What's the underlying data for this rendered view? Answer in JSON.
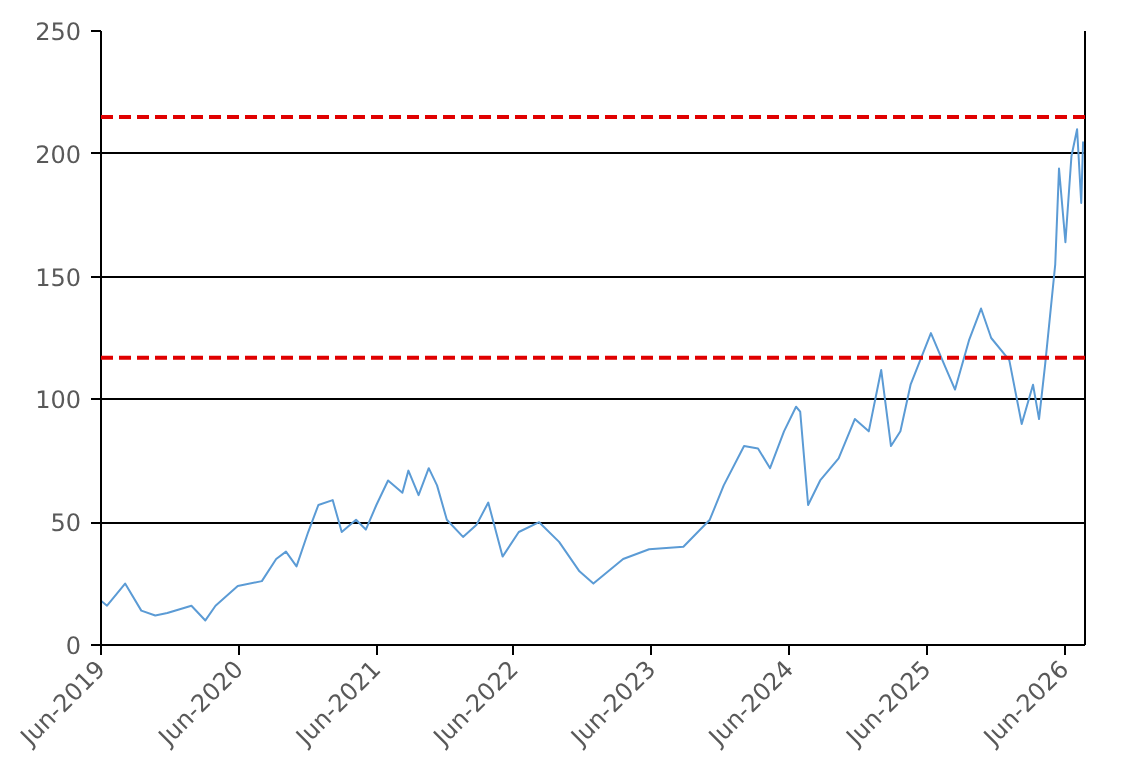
{
  "chart_data": {
    "type": "line",
    "x": [
      "2019-06-01",
      "2019-06-17",
      "2019-08-04",
      "2019-09-16",
      "2019-10-23",
      "2019-11-24",
      "2020-01-27",
      "2020-03-04",
      "2020-03-31",
      "2020-05-29",
      "2020-08-01",
      "2020-09-08",
      "2020-10-04",
      "2020-11-01",
      "2020-12-02",
      "2020-12-29",
      "2021-02-05",
      "2021-03-01",
      "2021-04-08",
      "2021-05-04",
      "2021-06-01",
      "2021-07-02",
      "2021-08-09",
      "2021-08-25",
      "2021-09-21",
      "2021-10-18",
      "2021-11-09",
      "2021-12-05",
      "2022-01-17",
      "2022-02-22",
      "2022-03-25",
      "2022-05-02",
      "2022-06-14",
      "2022-08-07",
      "2022-09-29",
      "2022-11-22",
      "2022-12-29",
      "2023-03-18",
      "2023-05-26",
      "2023-08-25",
      "2023-11-03",
      "2023-12-10",
      "2024-02-02",
      "2024-03-10",
      "2024-04-11",
      "2024-05-18",
      "2024-06-19",
      "2024-06-30",
      "2024-07-21",
      "2024-08-22",
      "2024-10-10",
      "2024-11-22",
      "2024-12-29",
      "2025-01-31",
      "2025-02-26",
      "2025-03-23",
      "2025-04-19",
      "2025-06-12",
      "2025-07-18",
      "2025-08-15",
      "2025-09-21",
      "2025-10-23",
      "2025-11-19",
      "2026-01-06",
      "2026-02-08",
      "2026-03-10",
      "2026-03-26",
      "2026-04-11",
      "2026-05-08",
      "2026-05-18",
      "2026-06-04",
      "2026-06-20",
      "2026-07-05",
      "2026-07-16",
      "2026-07-21"
    ],
    "series": [
      {
        "color": "#5b9bd5",
        "values": [
          18,
          16,
          25,
          14,
          12,
          13,
          16,
          10,
          16,
          24,
          26,
          35,
          38,
          32,
          46,
          57,
          59,
          46,
          51,
          47,
          57,
          67,
          62,
          71,
          61,
          72,
          65,
          51,
          44,
          49,
          58,
          36,
          46,
          50,
          42,
          30,
          25,
          35,
          39,
          40,
          51,
          65,
          81,
          80,
          72,
          87,
          97,
          95,
          57,
          67,
          76,
          92,
          87,
          112,
          81,
          87,
          106,
          127,
          114,
          104,
          124,
          137,
          125,
          116,
          90,
          106,
          92,
          114,
          155,
          194,
          164,
          199,
          210,
          180,
          205
        ]
      }
    ],
    "xlim": [
      "2019-06-01",
      "2026-07-26"
    ],
    "xticks": [
      {
        "value": "2019-06-01",
        "label": "Jun-2019"
      },
      {
        "value": "2020-06-01",
        "label": "Jun-2020"
      },
      {
        "value": "2021-06-01",
        "label": "Jun-2021"
      },
      {
        "value": "2022-06-01",
        "label": "Jun-2022"
      },
      {
        "value": "2023-06-01",
        "label": "Jun-2023"
      },
      {
        "value": "2024-06-01",
        "label": "Jun-2024"
      },
      {
        "value": "2025-06-01",
        "label": "Jun-2025"
      },
      {
        "value": "2026-06-01",
        "label": "Jun-2026"
      }
    ],
    "ylim": [
      0,
      250
    ],
    "yticks": [
      0,
      50,
      100,
      150,
      200,
      250
    ],
    "grid": "y",
    "ref_lines": [
      {
        "axis": "y",
        "value": 215,
        "color": "#e00000",
        "line_style": "dashed"
      },
      {
        "axis": "y",
        "value": 117,
        "color": "#e00000",
        "line_style": "dashed"
      }
    ]
  }
}
